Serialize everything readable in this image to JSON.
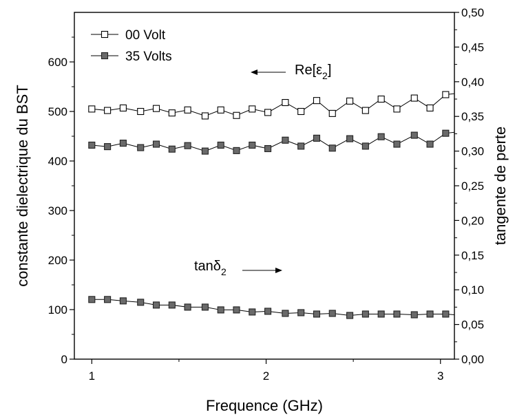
{
  "chart_data": {
    "type": "line",
    "xlabel": "Frequence (GHz)",
    "ylabel_left": "constante dielectrique du BST",
    "ylabel_right": "tangente de perte",
    "xlim": [
      0.9,
      3.08
    ],
    "ylim_left": [
      0,
      700
    ],
    "ylim_right": [
      0,
      0.5
    ],
    "x_ticks": [
      1,
      2,
      3
    ],
    "x_tick_labels": [
      "1",
      "2",
      "3"
    ],
    "y_left_ticks": [
      0,
      100,
      200,
      300,
      400,
      500,
      600
    ],
    "y_left_tick_labels": [
      "0",
      "100",
      "200",
      "300",
      "400",
      "500",
      "600"
    ],
    "y_right_ticks": [
      0,
      0.05,
      0.1,
      0.15,
      0.2,
      0.25,
      0.3,
      0.35,
      0.4,
      0.45,
      0.5
    ],
    "y_right_tick_labels": [
      "0,00",
      "0,05",
      "0,10",
      "0,15",
      "0,20",
      "0,25",
      "0,30",
      "0,35",
      "0,40",
      "0,45",
      "0,50"
    ],
    "legend": {
      "position": "top-left",
      "items": [
        {
          "label": "00 Volt",
          "marker": "open-square"
        },
        {
          "label": "35 Volts",
          "marker": "filled-square"
        }
      ]
    },
    "annotations": {
      "re": {
        "text": "Re[ε",
        "sub": "2",
        "suffix": "]",
        "arrow": "left"
      },
      "tan": {
        "text": "tanδ",
        "sub": "2",
        "arrow": "right"
      }
    },
    "x": [
      1.0,
      1.09,
      1.18,
      1.28,
      1.37,
      1.46,
      1.55,
      1.65,
      1.74,
      1.83,
      1.92,
      2.01,
      2.11,
      2.2,
      2.29,
      2.38,
      2.48,
      2.57,
      2.66,
      2.75,
      2.85,
      2.94,
      3.03,
      3.08
    ],
    "series": [
      {
        "name": "00 Volt",
        "axis": "left",
        "marker": "open-square",
        "values": [
          505,
          502,
          507,
          500,
          506,
          497,
          503,
          491,
          503,
          492,
          505,
          498,
          518,
          500,
          522,
          496,
          521,
          502,
          525,
          505,
          527,
          507,
          534,
          536
        ]
      },
      {
        "name": "35 Volts",
        "axis": "left",
        "marker": "filled-square",
        "values": [
          432,
          429,
          436,
          427,
          434,
          424,
          431,
          420,
          432,
          421,
          432,
          425,
          442,
          430,
          446,
          426,
          445,
          430,
          449,
          434,
          452,
          434,
          456,
          458
        ]
      },
      {
        "name": "tanδ2 35 Volts",
        "axis": "right",
        "marker": "filled-square",
        "values": [
          0.086,
          0.086,
          0.084,
          0.082,
          0.078,
          0.078,
          0.075,
          0.075,
          0.071,
          0.071,
          0.068,
          0.069,
          0.066,
          0.067,
          0.065,
          0.066,
          0.063,
          0.065,
          0.065,
          0.065,
          0.064,
          0.065,
          0.065,
          0.064
        ]
      }
    ]
  }
}
